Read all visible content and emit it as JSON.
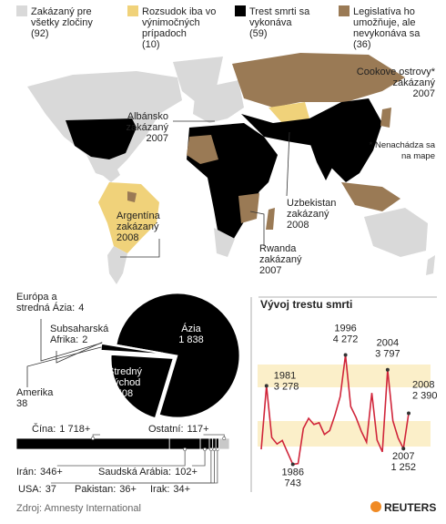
{
  "map": {
    "legend": [
      {
        "label": "Zakázaný pre\nvšetky zločiny",
        "count": "(92)",
        "color": "#d9d9d9"
      },
      {
        "label": "Rozsudok iba vo\nvýnimočných\nprípadoch",
        "count": "(10)",
        "color": "#f0d27a"
      },
      {
        "label": "Trest smrti sa\nvykonáva",
        "count": "(59)",
        "color": "#000000"
      },
      {
        "label": "Legislatíva ho\numožňuje, ale\nnevykonáva sa",
        "count": "(36)",
        "color": "#9a7a55"
      }
    ],
    "annotations": [
      "Cookove ostrovy*\nzakázaný\n2007",
      "* Nenachádza sa\nna mape",
      "Albánsko\nzakázaný\n2007",
      "Argentína\nzakázaný\n2008",
      "Uzbekistan\nzakázaný\n2008",
      "Rwanda\nzakázaný\n2007"
    ]
  },
  "chart_data": [
    {
      "type": "pie",
      "categories": [
        "Ázia",
        "Stredný\nvýchod",
        "Amerika",
        "Európa a\nstredná Ázia:",
        "Subsaharská\nAfrika:"
      ],
      "values": [
        1838,
        508,
        38,
        4,
        2
      ],
      "value_labels": [
        "1 838",
        "508",
        "38",
        "4",
        "2"
      ],
      "color": "#000000"
    },
    {
      "type": "line",
      "title": "Vývoj trestu smrti",
      "x": [
        1980,
        1981,
        1982,
        1983,
        1984,
        1985,
        1986,
        1987,
        1988,
        1989,
        1990,
        1991,
        1992,
        1993,
        1994,
        1995,
        1996,
        1997,
        1998,
        1999,
        2000,
        2001,
        2002,
        2003,
        2004,
        2005,
        2006,
        2007,
        2008
      ],
      "values": [
        1229,
        3278,
        1609,
        1399,
        1513,
        1125,
        743,
        769,
        1903,
        2229,
        2029,
        2086,
        1708,
        1831,
        2331,
        2931,
        4272,
        2607,
        2258,
        1813,
        1457,
        3048,
        1526,
        1146,
        3797,
        2148,
        1591,
        1252,
        2390
      ],
      "value_labels": [
        null,
        "3 278",
        null,
        null,
        null,
        null,
        "743",
        null,
        null,
        null,
        null,
        null,
        null,
        null,
        null,
        null,
        "4 272",
        null,
        null,
        null,
        null,
        null,
        null,
        null,
        "3 797",
        null,
        null,
        "1 252",
        "2 390"
      ],
      "color": "#d0253a",
      "xlim": [
        1980,
        2008
      ],
      "ylim": [
        200,
        4700
      ]
    },
    {
      "type": "bar",
      "orientation": "horizontal",
      "stacked": true,
      "categories": [
        "Čína:",
        "Irán:",
        "Saudská Arábia:",
        "USA:",
        "Pakistan:",
        "Irak:",
        "Ostatní:"
      ],
      "values": [
        1718,
        346,
        102,
        37,
        36,
        34,
        117
      ],
      "value_labels": [
        "1 718+",
        "346+",
        "102+",
        "37",
        "36+",
        "34+",
        "117+"
      ],
      "colors": [
        "#000000",
        "#000000",
        "#000000",
        "#000000",
        "#000000",
        "#000000",
        "#c8c8c8"
      ]
    }
  ],
  "footer": {
    "source": "Zdroj: Amnesty International",
    "logo": "REUTERS"
  }
}
